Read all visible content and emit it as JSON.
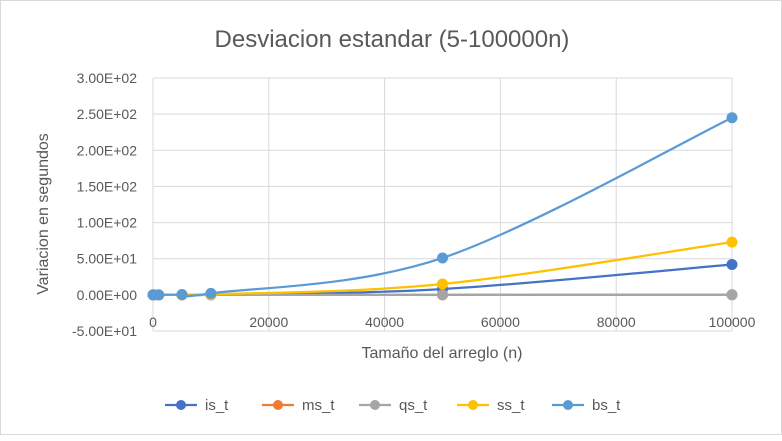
{
  "chart_data": {
    "type": "line",
    "title": "Desviacion estandar (5-100000n)",
    "xlabel": "Tamaño del arreglo (n)",
    "ylabel": "Variacion en segundos",
    "xlim": [
      0,
      100000
    ],
    "ylim": [
      -50,
      300
    ],
    "x_ticks": [
      0,
      20000,
      40000,
      60000,
      80000,
      100000
    ],
    "x_tick_labels": [
      "0",
      "20000",
      "40000",
      "60000",
      "80000",
      "100000"
    ],
    "y_ticks": [
      -50,
      0,
      50,
      100,
      150,
      200,
      250,
      300
    ],
    "y_tick_labels": [
      "-5.00E+01",
      "0.00E+00",
      "5.00E+01",
      "1.00E+02",
      "1.50E+02",
      "2.00E+02",
      "2.50E+02",
      "3.00E+02"
    ],
    "grid": true,
    "legend_position": "bottom",
    "x": [
      5,
      100,
      1000,
      5000,
      10000,
      50000,
      100000
    ],
    "series": [
      {
        "name": "is_t",
        "color": "#4472c4",
        "values": [
          0,
          0,
          0,
          0,
          0.1,
          8,
          42
        ]
      },
      {
        "name": "ms_t",
        "color": "#ed7d31",
        "values": [
          0,
          0,
          0,
          0,
          0,
          0.05,
          0.1
        ]
      },
      {
        "name": "qs_t",
        "color": "#a5a5a5",
        "values": [
          0,
          0,
          0,
          0,
          0,
          0.05,
          0.1
        ]
      },
      {
        "name": "ss_t",
        "color": "#ffc000",
        "values": [
          0,
          0,
          0,
          0.1,
          0.5,
          15,
          73
        ]
      },
      {
        "name": "bs_t",
        "color": "#5b9bd5",
        "values": [
          0,
          0,
          0,
          0.5,
          2,
          51,
          245
        ]
      }
    ]
  }
}
